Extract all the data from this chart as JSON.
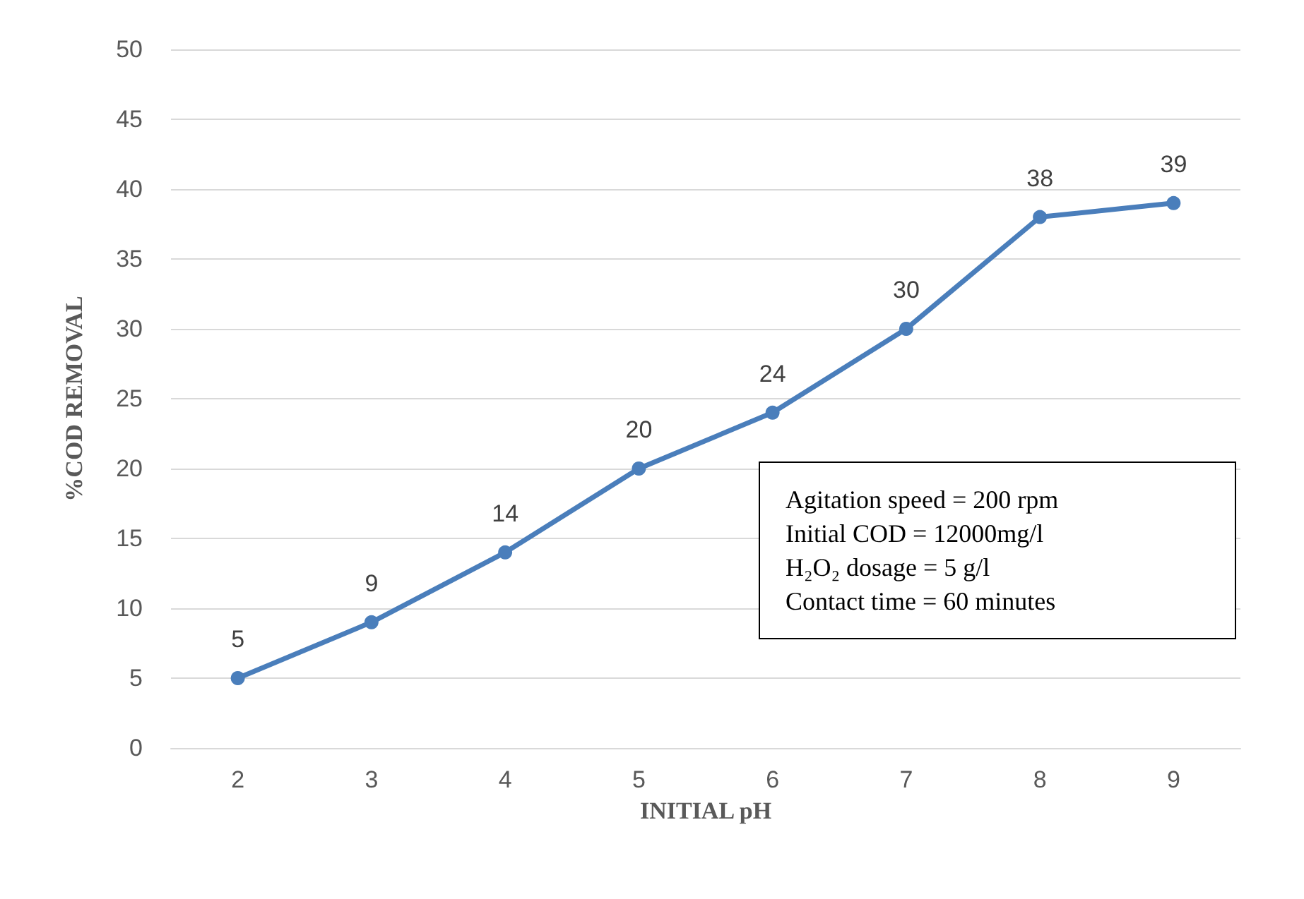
{
  "chart_data": {
    "type": "line",
    "xlabel": "INITIAL pH",
    "ylabel": "%COD REMOVAL",
    "categories": [
      "2",
      "3",
      "4",
      "5",
      "6",
      "7",
      "8",
      "9"
    ],
    "series": [
      {
        "color": "#4a7ebb",
        "values": [
          5,
          9,
          14,
          20,
          24,
          30,
          38,
          39
        ]
      }
    ],
    "ylim": [
      0,
      50
    ],
    "yticks": [
      0,
      5,
      10,
      15,
      20,
      25,
      30,
      35,
      40,
      45,
      50
    ],
    "grid": "y",
    "marker": "circle",
    "line_style": "solid",
    "data_labels": true,
    "annotations": [
      "Agitation speed = 200 rpm",
      "Initial COD = 12000mg/l",
      "H₂O₂ dosage = 5 g/l",
      "Contact time = 60 minutes"
    ]
  }
}
